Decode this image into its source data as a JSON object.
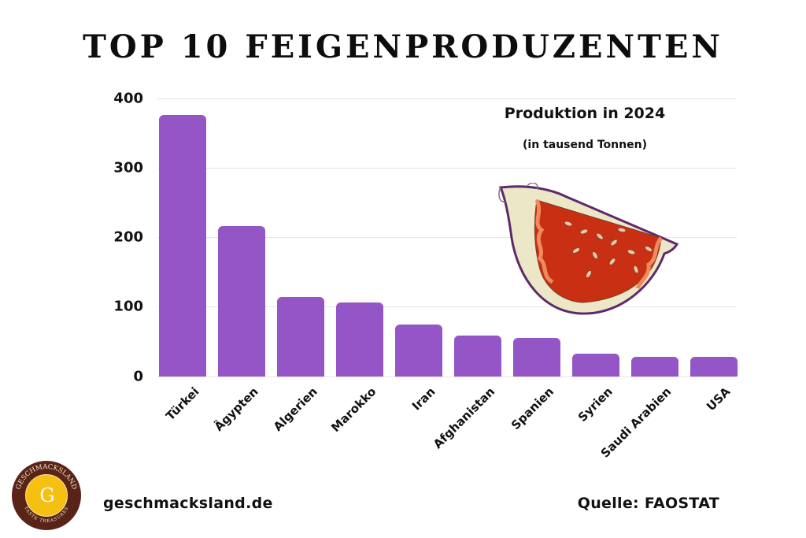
{
  "header": {
    "title": "TOP 10 FEIGENPRODUZENTEN"
  },
  "annotation": {
    "subtitle": "Produktion in 2024",
    "unit": "(in tausend Tonnen)"
  },
  "footer": {
    "website": "geschmacksland.de",
    "source": "Quelle: FAOSTAT",
    "logo_letter": "G",
    "logo_text_top": "GESCHMACKSLAND",
    "logo_text_bottom": "TASTE TREASURES"
  },
  "colors": {
    "bar": "#9455c6",
    "grid": "#e6e6e6",
    "logo_ring": "#5a2318",
    "logo_center": "#f6c012"
  },
  "chart_data": {
    "type": "bar",
    "title": "TOP 10 FEIGENPRODUZENTEN",
    "subtitle": "Produktion in 2024 (in tausend Tonnen)",
    "xlabel": "",
    "ylabel": "",
    "categories": [
      "Türkei",
      "Ägypten",
      "Algerien",
      "Marokko",
      "Iran",
      "Afghanistan",
      "Spanien",
      "Syrien",
      "Saudi Arabien",
      "USA"
    ],
    "values": [
      376,
      217,
      114,
      106,
      75,
      59,
      55,
      33,
      28,
      28
    ],
    "ylim": [
      0,
      400
    ],
    "yticks": [
      "0",
      "100",
      "200",
      "300",
      "400"
    ],
    "grid": true,
    "legend": "none",
    "source": "Quelle: FAOSTAT"
  }
}
